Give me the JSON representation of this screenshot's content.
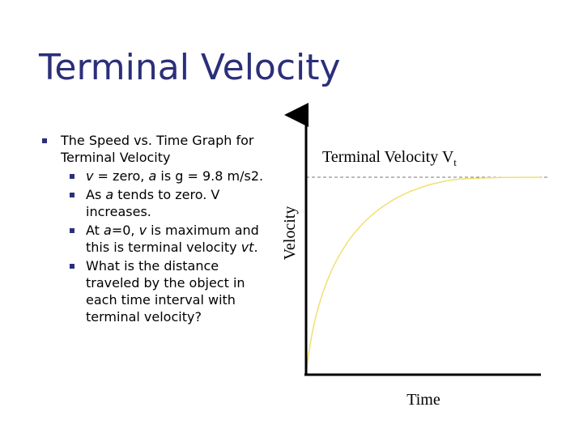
{
  "slide": {
    "title": "Terminal Velocity"
  },
  "bullets": {
    "main": "The Speed vs. Time Graph for Terminal Velocity",
    "sub": [
      {
        "parts": [
          {
            "t": " "
          },
          {
            "t": "v",
            "i": true
          },
          {
            "t": " = zero, "
          },
          {
            "t": "a",
            "i": true
          },
          {
            "t": " is g = 9.8 m/s2."
          }
        ]
      },
      {
        "parts": [
          {
            "t": " As "
          },
          {
            "t": "a",
            "i": true
          },
          {
            "t": " tends to zero. V increases."
          }
        ]
      },
      {
        "parts": [
          {
            "t": "At "
          },
          {
            "t": "a",
            "i": true
          },
          {
            "t": "=0, "
          },
          {
            "t": "v",
            "i": true
          },
          {
            "t": " is maximum and this is terminal velocity "
          },
          {
            "t": "vt",
            "i": true
          },
          {
            "t": "."
          }
        ]
      },
      {
        "parts": [
          {
            "t": "What is the distance traveled by the object in each time interval with terminal velocity?"
          }
        ]
      }
    ]
  },
  "graph": {
    "ylabel": "Velocity",
    "xlabel": "Time",
    "terminal_label": "Terminal Velocity V",
    "terminal_sub": "t",
    "curve_color": "#f0e070",
    "axis_color": "#000000"
  }
}
